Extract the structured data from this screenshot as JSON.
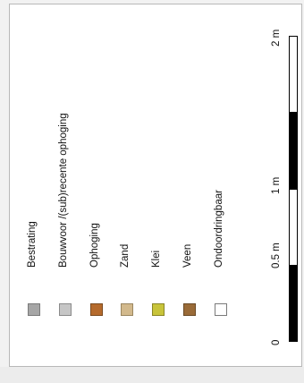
{
  "legend": {
    "items": [
      {
        "label": "Bestrating",
        "color": "#a6a6a6",
        "border": "#7a7a7a"
      },
      {
        "label": "Bouwvoor /(sub)recente ophoging",
        "color": "#c6c6c6",
        "border": "#8a8a8a"
      },
      {
        "label": "Ophoging",
        "color": "#b56a2c",
        "border": "#7a4a20"
      },
      {
        "label": "Zand",
        "color": "#d2b98c",
        "border": "#9a8660"
      },
      {
        "label": "Klei",
        "color": "#c8c43a",
        "border": "#8a8626"
      },
      {
        "label": "Veen",
        "color": "#9a6b38",
        "border": "#6a4a26"
      },
      {
        "label": "Ondoordringbaar",
        "color": "#ffffff",
        "border": "#7a7a7a"
      }
    ]
  },
  "scale": {
    "labels": [
      "0",
      "0.5 m",
      "1 m",
      "2 m"
    ],
    "segments": [
      {
        "from": 0,
        "to": 0.5,
        "fill": "#000000"
      },
      {
        "from": 0.5,
        "to": 1,
        "fill": "#ffffff"
      },
      {
        "from": 1,
        "to": 1.5,
        "fill": "#000000"
      },
      {
        "from": 1.5,
        "to": 2,
        "fill": "#ffffff"
      }
    ]
  }
}
